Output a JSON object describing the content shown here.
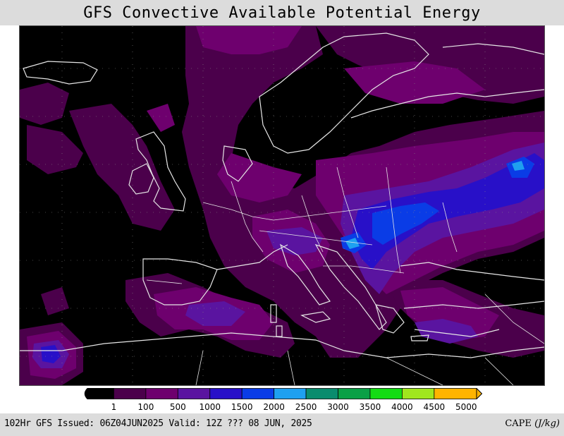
{
  "title": "GFS Convective Available Potential Energy",
  "colorbar": {
    "units": "CAPE",
    "unit_label": "(J/kg)",
    "ticks": [
      "1",
      "100",
      "500",
      "1000",
      "1500",
      "2000",
      "2500",
      "3000",
      "3500",
      "4000",
      "4500",
      "5000"
    ],
    "colors": [
      "#000000",
      "#4b004b",
      "#6e006e",
      "#5a14a0",
      "#2810c8",
      "#0a3ce6",
      "#1ea0f0",
      "#0a8c6e",
      "#0aa046",
      "#14dc14",
      "#a0e61e",
      "#ffb400"
    ]
  },
  "footer": {
    "left_text": "102Hr GFS Issued: 06Z04JUN2025 Valid: 12Z ??? 08 JUN, 2025",
    "right_prefix": "CAPE",
    "right_unit": "(J/kg)"
  }
}
